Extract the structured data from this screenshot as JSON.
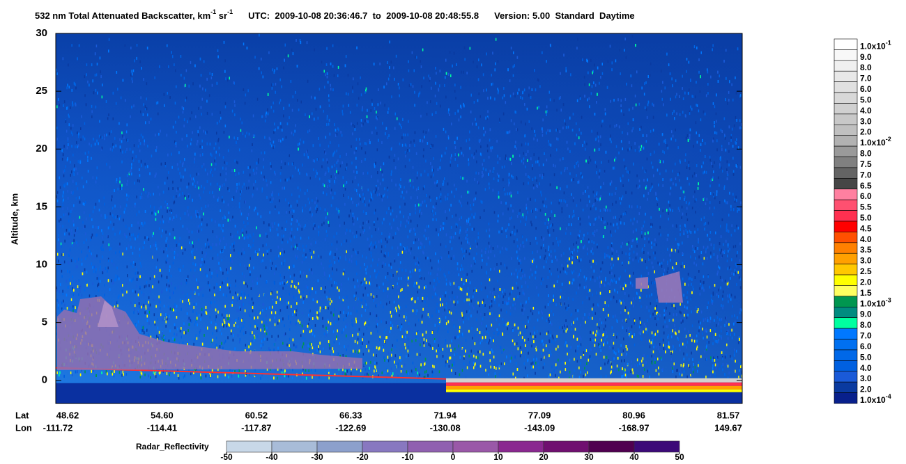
{
  "chart_data": {
    "type": "curtain",
    "title": {
      "text": "532 nm Total Attenuated Backscatter, km",
      "unit_exp": "-1",
      "unit2": " sr",
      "unit2_exp": "-1",
      "time_range": "UTC:  2009-10-08 20:36:46.7  to  2009-10-08 20:48:55.8",
      "version": "Version: 5.00  Standard  Daytime"
    },
    "y_label": "Altitude, km",
    "ylim": [
      -2,
      30
    ],
    "yticks": [
      0,
      5,
      10,
      15,
      20,
      25,
      30
    ],
    "lat_label": "Lat",
    "lon_label": "Lon",
    "lat": [
      "48.62",
      "54.60",
      "60.52",
      "66.33",
      "71.94",
      "77.09",
      "80.96",
      "81.57"
    ],
    "lon": [
      "-111.72",
      "-114.41",
      "-117.87",
      "-122.69",
      "-130.08",
      "-143.09",
      "-168.97",
      "149.67"
    ],
    "colorbar": [
      {
        "label": "1.0x10",
        "exp": "-1",
        "color": "#ffffff"
      },
      {
        "label": "9.0",
        "color": "#f8f8f8"
      },
      {
        "label": "8.0",
        "color": "#f0f0f0"
      },
      {
        "label": "7.0",
        "color": "#e8e8e8"
      },
      {
        "label": "6.0",
        "color": "#e0e0e0"
      },
      {
        "label": "5.0",
        "color": "#d8d8d8"
      },
      {
        "label": "4.0",
        "color": "#d0d0d0"
      },
      {
        "label": "3.0",
        "color": "#c8c8c8"
      },
      {
        "label": "2.0",
        "color": "#c0c0c0"
      },
      {
        "label": "1.0x10",
        "exp": "-2",
        "color": "#b2b2b2"
      },
      {
        "label": "8.0",
        "color": "#9a9a9a"
      },
      {
        "label": "7.5",
        "color": "#808080"
      },
      {
        "label": "7.0",
        "color": "#646464"
      },
      {
        "label": "6.5",
        "color": "#464646"
      },
      {
        "label": "6.0",
        "color": "#ff80a0"
      },
      {
        "label": "5.5",
        "color": "#ff5070"
      },
      {
        "label": "5.0",
        "color": "#ff3050"
      },
      {
        "label": "4.5",
        "color": "#ff0000"
      },
      {
        "label": "4.0",
        "color": "#ff5000"
      },
      {
        "label": "3.5",
        "color": "#ff8000"
      },
      {
        "label": "3.0",
        "color": "#ffa000"
      },
      {
        "label": "2.5",
        "color": "#ffc800"
      },
      {
        "label": "2.0",
        "color": "#ffff00"
      },
      {
        "label": "1.5",
        "color": "#ffff60"
      },
      {
        "label": "1.0x10",
        "exp": "-3",
        "color": "#009650"
      },
      {
        "label": "9.0",
        "color": "#008c80"
      },
      {
        "label": "8.0",
        "color": "#00ffa0"
      },
      {
        "label": "7.0",
        "color": "#0078ff"
      },
      {
        "label": "6.0",
        "color": "#0070f0"
      },
      {
        "label": "5.0",
        "color": "#0068e8"
      },
      {
        "label": "4.0",
        "color": "#0060e0"
      },
      {
        "label": "3.0",
        "color": "#1a5ad8"
      },
      {
        "label": "2.0",
        "color": "#0a3aa0"
      },
      {
        "label": "1.0x10",
        "exp": "-4",
        "color": "#08208c"
      }
    ],
    "radar": {
      "label": "Radar_Reflectivity",
      "ticks": [
        -50,
        -40,
        -30,
        -20,
        -10,
        0,
        10,
        20,
        30,
        40,
        50
      ],
      "colors": [
        "#c8d8e8",
        "#a8bcd8",
        "#8ca0cc",
        "#8878c0",
        "#9060b0",
        "#9a58a8",
        "#8a2890",
        "#701070",
        "#500050",
        "#3c0a78"
      ]
    }
  }
}
